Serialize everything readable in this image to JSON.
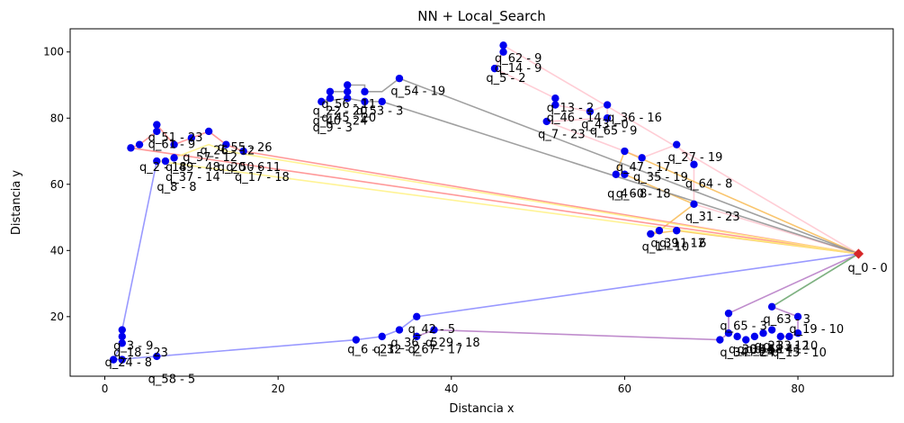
{
  "chart_data": {
    "type": "scatter",
    "title": "NN + Local_Search",
    "xlabel": "Distancia x",
    "ylabel": "Distancia y",
    "xlim": [
      -4,
      91
    ],
    "ylim": [
      2,
      107
    ],
    "x_ticks": [
      0,
      20,
      40,
      60,
      80
    ],
    "y_ticks": [
      20,
      40,
      60,
      80,
      100
    ],
    "grid": false,
    "depot": {
      "x": 87,
      "y": 39,
      "label": "q_0 - 0",
      "color": "#d62728"
    },
    "points": [
      [
        46,
        102
      ],
      [
        46,
        100
      ],
      [
        45,
        95
      ],
      [
        52,
        86
      ],
      [
        52,
        84
      ],
      [
        56,
        82
      ],
      [
        58,
        84
      ],
      [
        58,
        80
      ],
      [
        51,
        79
      ],
      [
        60,
        70
      ],
      [
        62,
        68
      ],
      [
        66,
        72
      ],
      [
        68,
        66
      ],
      [
        59,
        63
      ],
      [
        60,
        63
      ],
      [
        68,
        54
      ],
      [
        63,
        45
      ],
      [
        64,
        46
      ],
      [
        66,
        46
      ],
      [
        34,
        92
      ],
      [
        30,
        88
      ],
      [
        28,
        90
      ],
      [
        28,
        88
      ],
      [
        26,
        88
      ],
      [
        26,
        86
      ],
      [
        25,
        85
      ],
      [
        28,
        86
      ],
      [
        30,
        85
      ],
      [
        32,
        85
      ],
      [
        6,
        78
      ],
      [
        6,
        76
      ],
      [
        4,
        72
      ],
      [
        3,
        71
      ],
      [
        8,
        72
      ],
      [
        10,
        74
      ],
      [
        12,
        76
      ],
      [
        14,
        72
      ],
      [
        16,
        70
      ],
      [
        8,
        68
      ],
      [
        7,
        67
      ],
      [
        6,
        67
      ],
      [
        2,
        16
      ],
      [
        2,
        14
      ],
      [
        2,
        12
      ],
      [
        1,
        7
      ],
      [
        2,
        7
      ],
      [
        6,
        8
      ],
      [
        29,
        13
      ],
      [
        32,
        14
      ],
      [
        34,
        16
      ],
      [
        36,
        20
      ],
      [
        36,
        14
      ],
      [
        38,
        16
      ],
      [
        72,
        21
      ],
      [
        72,
        15
      ],
      [
        71,
        13
      ],
      [
        73,
        14
      ],
      [
        74,
        13
      ],
      [
        75,
        14
      ],
      [
        76,
        15
      ],
      [
        77,
        16
      ],
      [
        78,
        14
      ],
      [
        79,
        14
      ],
      [
        77,
        23
      ],
      [
        80,
        20
      ],
      [
        80,
        15
      ]
    ],
    "point_labels": [
      {
        "text": "q_62 - 9",
        "x": 45,
        "y": 97
      },
      {
        "text": "q_14 - 9",
        "x": 45,
        "y": 94
      },
      {
        "text": "q_5 - 2",
        "x": 44,
        "y": 91
      },
      {
        "text": "q_13 - 2",
        "x": 51,
        "y": 82
      },
      {
        "text": "q_46 - 14",
        "x": 51,
        "y": 79
      },
      {
        "text": "q_43 - 0",
        "x": 55,
        "y": 77
      },
      {
        "text": "q_36 - 16",
        "x": 58,
        "y": 79
      },
      {
        "text": "q_65 - 9",
        "x": 56,
        "y": 75
      },
      {
        "text": "q_7 - 23",
        "x": 50,
        "y": 74
      },
      {
        "text": "q_27 - 19",
        "x": 65,
        "y": 67
      },
      {
        "text": "q_47 - 17",
        "x": 59,
        "y": 64
      },
      {
        "text": "q_35 - 19",
        "x": 61,
        "y": 61
      },
      {
        "text": "q_64 - 8",
        "x": 67,
        "y": 59
      },
      {
        "text": "q_60 - 18",
        "x": 59,
        "y": 56
      },
      {
        "text": "q_4 - 8",
        "x": 58,
        "y": 56
      },
      {
        "text": "q_31 - 23",
        "x": 67,
        "y": 49
      },
      {
        "text": "q_39 - 12",
        "x": 63,
        "y": 41
      },
      {
        "text": "q_11 - 6",
        "x": 64,
        "y": 41
      },
      {
        "text": "q_1 - 10",
        "x": 62,
        "y": 40
      },
      {
        "text": "q_54 - 19",
        "x": 33,
        "y": 87
      },
      {
        "text": "q_56 - 11",
        "x": 25,
        "y": 83
      },
      {
        "text": "q_22 - 20",
        "x": 24,
        "y": 81
      },
      {
        "text": "q_53 - 3",
        "x": 29,
        "y": 81
      },
      {
        "text": "q_45 - 20",
        "x": 25,
        "y": 79
      },
      {
        "text": "q_40 - 24",
        "x": 24,
        "y": 78
      },
      {
        "text": "q_9 - 3",
        "x": 24,
        "y": 76
      },
      {
        "text": "q_51 - 23",
        "x": 5,
        "y": 73
      },
      {
        "text": "q_61 - 9",
        "x": 5,
        "y": 71
      },
      {
        "text": "q_26 - 12",
        "x": 11,
        "y": 69
      },
      {
        "text": "q_55 - 26",
        "x": 13,
        "y": 70
      },
      {
        "text": "q_57 - 12",
        "x": 9,
        "y": 67
      },
      {
        "text": "q_2 - 18",
        "x": 4,
        "y": 64
      },
      {
        "text": "q_49 - 48",
        "x": 7,
        "y": 64
      },
      {
        "text": "q_20 - 6",
        "x": 13,
        "y": 64
      },
      {
        "text": "q_50 - 11",
        "x": 14,
        "y": 64
      },
      {
        "text": "q_17 - 18",
        "x": 15,
        "y": 61
      },
      {
        "text": "q_37 - 14",
        "x": 7,
        "y": 61
      },
      {
        "text": "q_8 - 8",
        "x": 6,
        "y": 58
      },
      {
        "text": "q_3 - 9",
        "x": 1,
        "y": 10
      },
      {
        "text": "q_18 - 23",
        "x": 1,
        "y": 8
      },
      {
        "text": "q_24 - 8",
        "x": 0,
        "y": 5
      },
      {
        "text": "q_58 - 5",
        "x": 5,
        "y": 0
      },
      {
        "text": "q_6 - 21",
        "x": 28,
        "y": 9
      },
      {
        "text": "q_32 - 2",
        "x": 31,
        "y": 9
      },
      {
        "text": "q_36 - 5",
        "x": 33,
        "y": 11
      },
      {
        "text": "q_42 - 5",
        "x": 35,
        "y": 15
      },
      {
        "text": "q_67 - 17",
        "x": 35,
        "y": 9
      },
      {
        "text": "q_29 - 18",
        "x": 37,
        "y": 11
      },
      {
        "text": "q_65 - 3",
        "x": 71,
        "y": 16
      },
      {
        "text": "q_63 - 3",
        "x": 76,
        "y": 18
      },
      {
        "text": "q_19 - 10",
        "x": 79,
        "y": 15
      },
      {
        "text": "q_21 - 12",
        "x": 75,
        "y": 10
      },
      {
        "text": "q_33 - 10",
        "x": 76,
        "y": 10
      },
      {
        "text": "q_30 - 5",
        "x": 72,
        "y": 9
      },
      {
        "text": "q_34 - 24",
        "x": 71,
        "y": 8
      },
      {
        "text": "q_38 - 1",
        "x": 73,
        "y": 9
      },
      {
        "text": "q_44 - 4",
        "x": 74,
        "y": 9
      },
      {
        "text": "q_48 - 1",
        "x": 75,
        "y": 9
      },
      {
        "text": "q_15 - 10",
        "x": 77,
        "y": 8
      }
    ],
    "routes": [
      {
        "color": "#ffc0cb",
        "points": [
          [
            87,
            39
          ],
          [
            46,
            102
          ],
          [
            46,
            100
          ],
          [
            45,
            95
          ],
          [
            52,
            86
          ],
          [
            52,
            84
          ],
          [
            56,
            82
          ],
          [
            58,
            84
          ],
          [
            58,
            80
          ],
          [
            51,
            79
          ],
          [
            60,
            70
          ],
          [
            62,
            68
          ],
          [
            66,
            72
          ],
          [
            68,
            66
          ],
          [
            68,
            54
          ],
          [
            87,
            39
          ]
        ]
      },
      {
        "color": "#f7b74a",
        "points": [
          [
            87,
            39
          ],
          [
            66,
            46
          ],
          [
            63,
            45
          ],
          [
            64,
            46
          ],
          [
            68,
            54
          ],
          [
            60,
            63
          ],
          [
            59,
            63
          ],
          [
            60,
            70
          ],
          [
            87,
            39
          ]
        ]
      },
      {
        "color": "#888888",
        "points": [
          [
            87,
            39
          ],
          [
            34,
            92
          ],
          [
            32,
            88
          ],
          [
            30,
            88
          ],
          [
            30,
            90
          ],
          [
            28,
            90
          ],
          [
            28,
            88
          ],
          [
            26,
            88
          ],
          [
            26,
            86
          ],
          [
            25,
            85
          ],
          [
            28,
            86
          ],
          [
            30,
            85
          ],
          [
            32,
            85
          ],
          [
            87,
            39
          ]
        ]
      },
      {
        "color": "#ff8080",
        "points": [
          [
            87,
            39
          ],
          [
            16,
            70
          ],
          [
            14,
            72
          ],
          [
            12,
            76
          ],
          [
            10,
            74
          ],
          [
            8,
            72
          ],
          [
            6,
            78
          ],
          [
            6,
            76
          ],
          [
            4,
            72
          ],
          [
            3,
            71
          ],
          [
            87,
            39
          ]
        ]
      },
      {
        "color": "#fff07a",
        "points": [
          [
            87,
            39
          ],
          [
            14,
            70
          ],
          [
            12,
            72
          ],
          [
            8,
            68
          ],
          [
            7,
            67
          ],
          [
            6,
            67
          ],
          [
            87,
            39
          ]
        ]
      },
      {
        "color": "#8080ff",
        "points": [
          [
            87,
            39
          ],
          [
            36,
            20
          ],
          [
            34,
            16
          ],
          [
            32,
            14
          ],
          [
            29,
            13
          ],
          [
            6,
            8
          ],
          [
            1,
            7
          ],
          [
            2,
            12
          ],
          [
            2,
            14
          ],
          [
            2,
            16
          ],
          [
            6,
            67
          ]
        ]
      },
      {
        "color": "#b070c0",
        "points": [
          [
            87,
            39
          ],
          [
            72,
            21
          ],
          [
            72,
            15
          ],
          [
            71,
            13
          ],
          [
            38,
            16
          ],
          [
            36,
            14
          ]
        ]
      },
      {
        "color": "#b070c0",
        "points": [
          [
            87,
            39
          ],
          [
            77,
            23
          ],
          [
            80,
            20
          ],
          [
            80,
            15
          ],
          [
            79,
            14
          ],
          [
            78,
            14
          ]
        ]
      },
      {
        "color": "#6cbf6c",
        "points": [
          [
            87,
            39
          ],
          [
            77,
            23
          ]
        ]
      }
    ]
  }
}
